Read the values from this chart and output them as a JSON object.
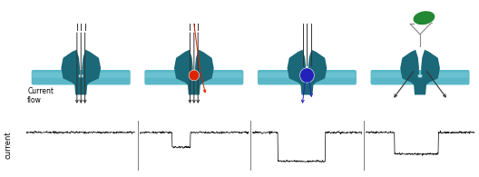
{
  "bg_color": "#ffffff",
  "teal_dark": "#1a6878",
  "teal_mid": "#2a8a9a",
  "teal_light": "#5ab8c8",
  "membrane_color": "#5ab8c8",
  "red_color": "#dd2200",
  "blue_color": "#2222bb",
  "green_color": "#228833",
  "arrow_color": "#222222",
  "text_color": "#000000",
  "current_label": "current",
  "flow_label": "Current\nflow",
  "fig_width": 5.28,
  "fig_height": 1.95
}
